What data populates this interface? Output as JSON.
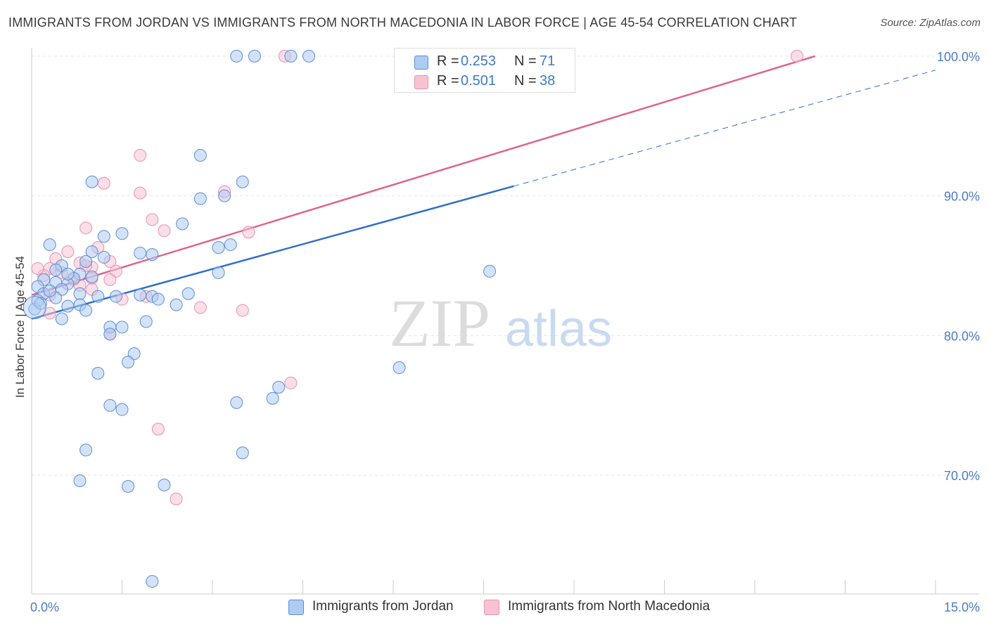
{
  "title": "IMMIGRANTS FROM JORDAN VS IMMIGRANTS FROM NORTH MACEDONIA IN LABOR FORCE | AGE 45-54 CORRELATION CHART",
  "source": "Source: ZipAtlas.com",
  "watermark": {
    "zip": "ZIP",
    "atlas": "atlas"
  },
  "legend": {
    "jordan": {
      "r_label": "R =",
      "r_value": "0.253",
      "n_label": "N =",
      "n_value": "71"
    },
    "macedonia": {
      "r_label": "R =",
      "r_value": "0.501",
      "n_label": "N =",
      "n_value": "38"
    }
  },
  "colors": {
    "jordan_fill": "#aecbf0",
    "jordan_stroke": "#5b8fd6",
    "jordan_line": "#2f6fcb",
    "macedonia_fill": "#f7c3d3",
    "macedonia_stroke": "#e693ae",
    "macedonia_line": "#e0638f",
    "tick_text": "#4a7cc7",
    "grid": "#e4e4e4"
  },
  "chart_data": {
    "type": "scatter",
    "title": "IMMIGRANTS FROM JORDAN VS IMMIGRANTS FROM NORTH MACEDONIA IN LABOR FORCE | AGE 45-54 CORRELATION CHART",
    "xlabel": "",
    "ylabel": "In Labor Force | Age 45-54",
    "xlim": [
      0,
      15
    ],
    "ylim": [
      61.5,
      101.0
    ],
    "x_tick_labels": [
      "0.0%",
      "15.0%"
    ],
    "y_ticks": [
      70,
      80,
      90,
      100
    ],
    "y_tick_labels": [
      "70.0%",
      "80.0%",
      "90.0%",
      "100.0%"
    ],
    "grid": true,
    "legend_position": "bottom",
    "series": [
      {
        "name": "Immigrants from Jordan",
        "color": "#5b8fd6",
        "regression": {
          "x": [
            0,
            15
          ],
          "y": [
            81.2,
            99.0
          ],
          "solid_until_x": 8.0
        },
        "points": [
          [
            3.4,
            100.0
          ],
          [
            3.7,
            100.0
          ],
          [
            4.3,
            100.0
          ],
          [
            4.6,
            100.0
          ],
          [
            6.5,
            100.0
          ],
          [
            2.8,
            92.9
          ],
          [
            1.0,
            91.0
          ],
          [
            3.5,
            91.0
          ],
          [
            2.8,
            89.8
          ],
          [
            3.2,
            90.0
          ],
          [
            2.5,
            88.0
          ],
          [
            1.5,
            87.3
          ],
          [
            1.2,
            87.1
          ],
          [
            0.3,
            86.5
          ],
          [
            3.1,
            86.3
          ],
          [
            3.3,
            86.5
          ],
          [
            1.0,
            86.0
          ],
          [
            1.8,
            85.9
          ],
          [
            2.0,
            85.8
          ],
          [
            1.2,
            85.6
          ],
          [
            0.9,
            85.3
          ],
          [
            0.5,
            85.0
          ],
          [
            0.4,
            84.7
          ],
          [
            3.1,
            84.5
          ],
          [
            0.8,
            84.4
          ],
          [
            0.7,
            84.1
          ],
          [
            0.2,
            84.0
          ],
          [
            0.4,
            83.8
          ],
          [
            0.6,
            83.7
          ],
          [
            0.1,
            83.5
          ],
          [
            0.5,
            83.3
          ],
          [
            0.2,
            83.0
          ],
          [
            0.8,
            83.0
          ],
          [
            1.1,
            82.8
          ],
          [
            0.4,
            82.7
          ],
          [
            1.4,
            82.8
          ],
          [
            1.8,
            82.9
          ],
          [
            2.0,
            82.8
          ],
          [
            2.6,
            83.0
          ],
          [
            2.1,
            82.6
          ],
          [
            2.4,
            82.2
          ],
          [
            0.6,
            82.1
          ],
          [
            0.8,
            82.2
          ],
          [
            0.9,
            81.8
          ],
          [
            0.05,
            81.9
          ],
          [
            0.5,
            81.2
          ],
          [
            1.3,
            80.6
          ],
          [
            1.5,
            80.6
          ],
          [
            1.9,
            81.0
          ],
          [
            1.3,
            80.1
          ],
          [
            1.7,
            78.7
          ],
          [
            1.6,
            78.1
          ],
          [
            1.1,
            77.3
          ],
          [
            6.1,
            77.7
          ],
          [
            4.1,
            76.3
          ],
          [
            4.0,
            75.5
          ],
          [
            3.4,
            75.2
          ],
          [
            1.3,
            75.0
          ],
          [
            1.5,
            74.7
          ],
          [
            0.9,
            71.8
          ],
          [
            3.5,
            71.6
          ],
          [
            0.8,
            69.6
          ],
          [
            1.6,
            69.2
          ],
          [
            2.2,
            69.3
          ],
          [
            7.6,
            84.6
          ],
          [
            2.0,
            62.4
          ],
          [
            0.1,
            82.5
          ],
          [
            0.3,
            83.2
          ],
          [
            1.0,
            84.2
          ],
          [
            0.15,
            82.3
          ],
          [
            0.6,
            84.4
          ]
        ]
      },
      {
        "name": "Immigrants from North Macedonia",
        "color": "#e693ae",
        "regression": {
          "x": [
            0,
            13.0
          ],
          "y": [
            82.9,
            100.0
          ]
        },
        "points": [
          [
            4.2,
            100.0
          ],
          [
            8.0,
            100.0
          ],
          [
            12.7,
            100.0
          ],
          [
            1.8,
            92.9
          ],
          [
            1.2,
            90.9
          ],
          [
            1.8,
            90.2
          ],
          [
            3.2,
            90.3
          ],
          [
            2.0,
            88.3
          ],
          [
            2.2,
            87.5
          ],
          [
            3.6,
            87.4
          ],
          [
            0.9,
            87.7
          ],
          [
            1.1,
            86.3
          ],
          [
            0.6,
            86.0
          ],
          [
            0.4,
            85.5
          ],
          [
            1.3,
            85.3
          ],
          [
            0.8,
            85.2
          ],
          [
            0.3,
            84.8
          ],
          [
            1.0,
            84.9
          ],
          [
            1.4,
            84.6
          ],
          [
            0.5,
            84.5
          ],
          [
            0.7,
            84.0
          ],
          [
            1.0,
            84.1
          ],
          [
            0.2,
            84.3
          ],
          [
            0.8,
            83.6
          ],
          [
            1.0,
            83.3
          ],
          [
            1.5,
            82.6
          ],
          [
            1.9,
            82.8
          ],
          [
            2.8,
            82.0
          ],
          [
            3.5,
            81.8
          ],
          [
            0.3,
            81.6
          ],
          [
            1.3,
            80.1
          ],
          [
            4.3,
            76.6
          ],
          [
            2.1,
            73.3
          ],
          [
            2.4,
            68.3
          ],
          [
            0.1,
            84.8
          ],
          [
            0.3,
            82.9
          ],
          [
            0.9,
            85.0
          ],
          [
            1.3,
            84.0
          ]
        ]
      }
    ]
  },
  "bottom_legend": {
    "jordan_label": "Immigrants from Jordan",
    "macedonia_label": "Immigrants from North Macedonia"
  }
}
